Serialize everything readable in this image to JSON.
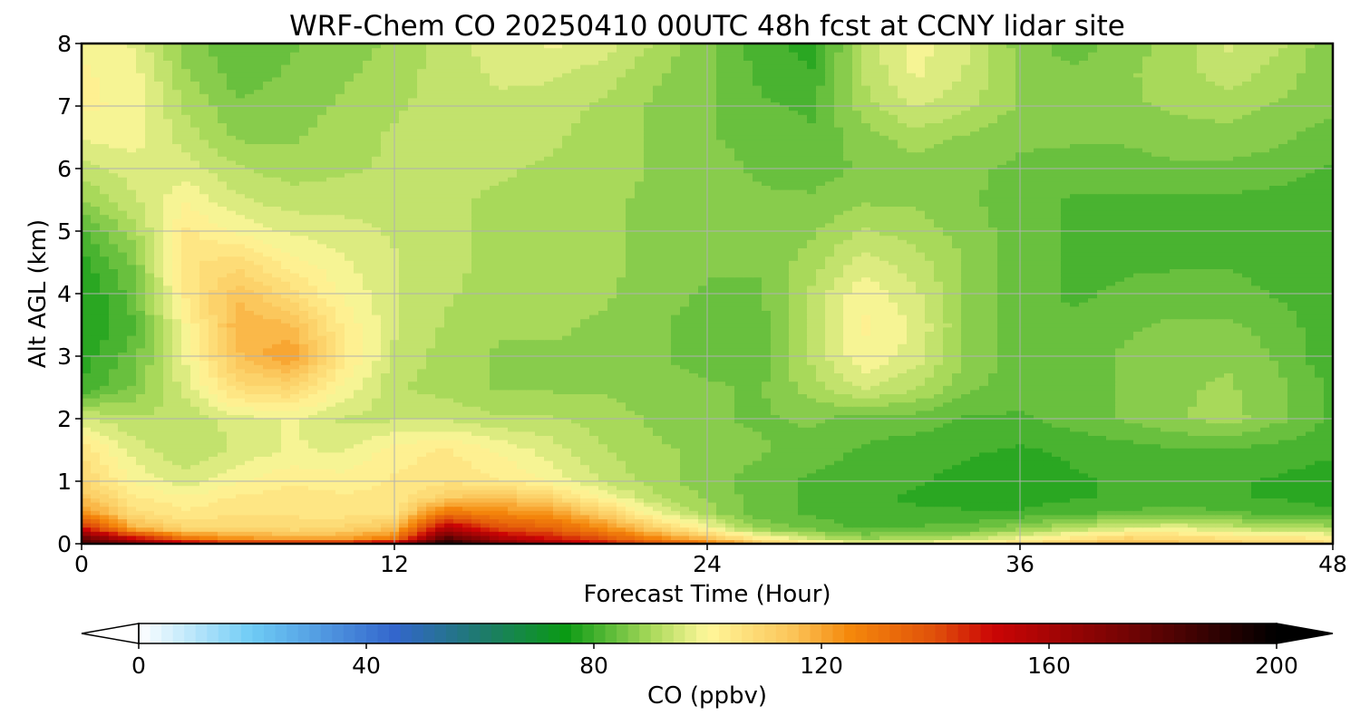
{
  "chart_data": {
    "type": "heatmap",
    "title": "WRF-Chem CO  20250410 00UTC 48h fcst at CCNY lidar site",
    "xlabel": "Forecast Time (Hour)",
    "ylabel": "Alt AGL (km)",
    "xlim": [
      0,
      48
    ],
    "ylim": [
      0,
      8
    ],
    "x_ticks": [
      0,
      12,
      24,
      36,
      48
    ],
    "y_ticks": [
      0,
      1,
      2,
      3,
      4,
      5,
      6,
      7,
      8
    ],
    "grid": true,
    "colorbar": {
      "label": "CO  (ppbv)",
      "range": [
        0,
        200
      ],
      "ticks": [
        0,
        40,
        80,
        120,
        160,
        200
      ],
      "extend": "both",
      "stops": [
        {
          "value": 0,
          "color": "#ffffff"
        },
        {
          "value": 20,
          "color": "#6ecbf5"
        },
        {
          "value": 45,
          "color": "#3366cc"
        },
        {
          "value": 60,
          "color": "#1e7a6e"
        },
        {
          "value": 75,
          "color": "#0a9a14"
        },
        {
          "value": 90,
          "color": "#a8d95a"
        },
        {
          "value": 100,
          "color": "#fff79a"
        },
        {
          "value": 115,
          "color": "#fbc458"
        },
        {
          "value": 125,
          "color": "#f5880b"
        },
        {
          "value": 140,
          "color": "#e0500a"
        },
        {
          "value": 150,
          "color": "#cc0505"
        },
        {
          "value": 175,
          "color": "#6e0404"
        },
        {
          "value": 200,
          "color": "#000000"
        }
      ]
    },
    "time_hours": [
      0,
      2,
      4,
      6,
      8,
      10,
      12,
      14,
      16,
      18,
      20,
      22,
      24,
      26,
      28,
      30,
      32,
      34,
      36,
      38,
      40,
      42,
      44,
      46,
      48
    ],
    "altitudes_km": [
      0,
      0.1,
      0.25,
      0.5,
      0.75,
      1,
      1.5,
      2,
      2.5,
      3,
      3.5,
      4,
      4.5,
      5,
      5.5,
      6,
      6.5,
      7,
      7.5,
      8
    ],
    "co_ppbv": [
      [
        185,
        170,
        155,
        150,
        150,
        152,
        158,
        195,
        172,
        160,
        150,
        140,
        130,
        115,
        105,
        98,
        100,
        102,
        108,
        112,
        118,
        115,
        112,
        110,
        108
      ],
      [
        175,
        150,
        130,
        122,
        120,
        120,
        128,
        180,
        158,
        148,
        138,
        125,
        115,
        102,
        93,
        88,
        90,
        92,
        98,
        104,
        110,
        108,
        106,
        104,
        103
      ],
      [
        150,
        118,
        110,
        110,
        108,
        110,
        116,
        158,
        140,
        135,
        125,
        112,
        100,
        88,
        85,
        82,
        83,
        84,
        88,
        92,
        96,
        98,
        94,
        92,
        90
      ],
      [
        125,
        108,
        104,
        106,
        106,
        105,
        106,
        130,
        125,
        122,
        112,
        98,
        90,
        84,
        82,
        80,
        80,
        80,
        80,
        82,
        83,
        84,
        83,
        82,
        80
      ],
      [
        115,
        104,
        101,
        104,
        105,
        104,
        104,
        112,
        115,
        110,
        100,
        92,
        88,
        84,
        82,
        80,
        79,
        78,
        78,
        79,
        80,
        80,
        80,
        79,
        78
      ],
      [
        110,
        100,
        96,
        100,
        103,
        102,
        104,
        106,
        104,
        100,
        94,
        90,
        87,
        84,
        82,
        81,
        80,
        78,
        78,
        79,
        80,
        80,
        80,
        79,
        78
      ],
      [
        106,
        96,
        92,
        95,
        98,
        97,
        102,
        104,
        100,
        96,
        92,
        89,
        88,
        86,
        84,
        82,
        81,
        80,
        79,
        80,
        81,
        82,
        82,
        81,
        80
      ],
      [
        95,
        92,
        92,
        96,
        98,
        94,
        94,
        94,
        92,
        92,
        90,
        88,
        86,
        85,
        86,
        84,
        84,
        82,
        82,
        84,
        86,
        88,
        90,
        86,
        82
      ],
      [
        80,
        86,
        96,
        108,
        110,
        100,
        92,
        90,
        88,
        88,
        88,
        87,
        86,
        85,
        90,
        95,
        92,
        86,
        84,
        84,
        86,
        88,
        89,
        86,
        82
      ],
      [
        78,
        84,
        98,
        115,
        122,
        105,
        94,
        90,
        88,
        88,
        88,
        86,
        84,
        84,
        92,
        100,
        96,
        88,
        84,
        84,
        86,
        87,
        88,
        85,
        80
      ],
      [
        76,
        82,
        100,
        118,
        116,
        103,
        95,
        91,
        89,
        89,
        88,
        86,
        84,
        84,
        93,
        101,
        97,
        88,
        84,
        83,
        85,
        86,
        86,
        84,
        80
      ],
      [
        76,
        84,
        104,
        115,
        108,
        100,
        95,
        92,
        90,
        90,
        89,
        87,
        85,
        85,
        92,
        100,
        95,
        88,
        84,
        82,
        83,
        84,
        84,
        82,
        80
      ],
      [
        78,
        86,
        106,
        108,
        102,
        98,
        95,
        92,
        91,
        90,
        89,
        88,
        86,
        86,
        90,
        96,
        93,
        88,
        84,
        82,
        82,
        82,
        82,
        81,
        80
      ],
      [
        82,
        90,
        104,
        100,
        97,
        96,
        94,
        92,
        91,
        90,
        89,
        88,
        87,
        86,
        88,
        92,
        90,
        87,
        84,
        82,
        82,
        82,
        82,
        81,
        80
      ],
      [
        88,
        94,
        100,
        95,
        93,
        93,
        93,
        92,
        91,
        90,
        89,
        88,
        87,
        86,
        86,
        88,
        88,
        86,
        84,
        82,
        82,
        82,
        82,
        81,
        80
      ],
      [
        93,
        96,
        96,
        92,
        90,
        91,
        92,
        92,
        92,
        91,
        90,
        88,
        87,
        85,
        84,
        86,
        87,
        86,
        85,
        84,
        84,
        85,
        85,
        84,
        82
      ],
      [
        98,
        99,
        93,
        88,
        88,
        90,
        92,
        93,
        93,
        92,
        90,
        88,
        86,
        84,
        83,
        87,
        90,
        88,
        86,
        86,
        86,
        87,
        87,
        86,
        84
      ],
      [
        101,
        100,
        91,
        86,
        87,
        89,
        91,
        93,
        94,
        93,
        91,
        88,
        86,
        83,
        82,
        90,
        95,
        92,
        88,
        87,
        88,
        89,
        90,
        88,
        86
      ],
      [
        101,
        99,
        89,
        84,
        86,
        88,
        90,
        93,
        95,
        95,
        93,
        89,
        86,
        82,
        80,
        92,
        98,
        94,
        88,
        86,
        88,
        90,
        93,
        90,
        86
      ],
      [
        100,
        97,
        87,
        83,
        85,
        87,
        89,
        93,
        96,
        98,
        96,
        91,
        86,
        81,
        78,
        92,
        99,
        95,
        87,
        84,
        87,
        90,
        95,
        92,
        86
      ]
    ]
  }
}
